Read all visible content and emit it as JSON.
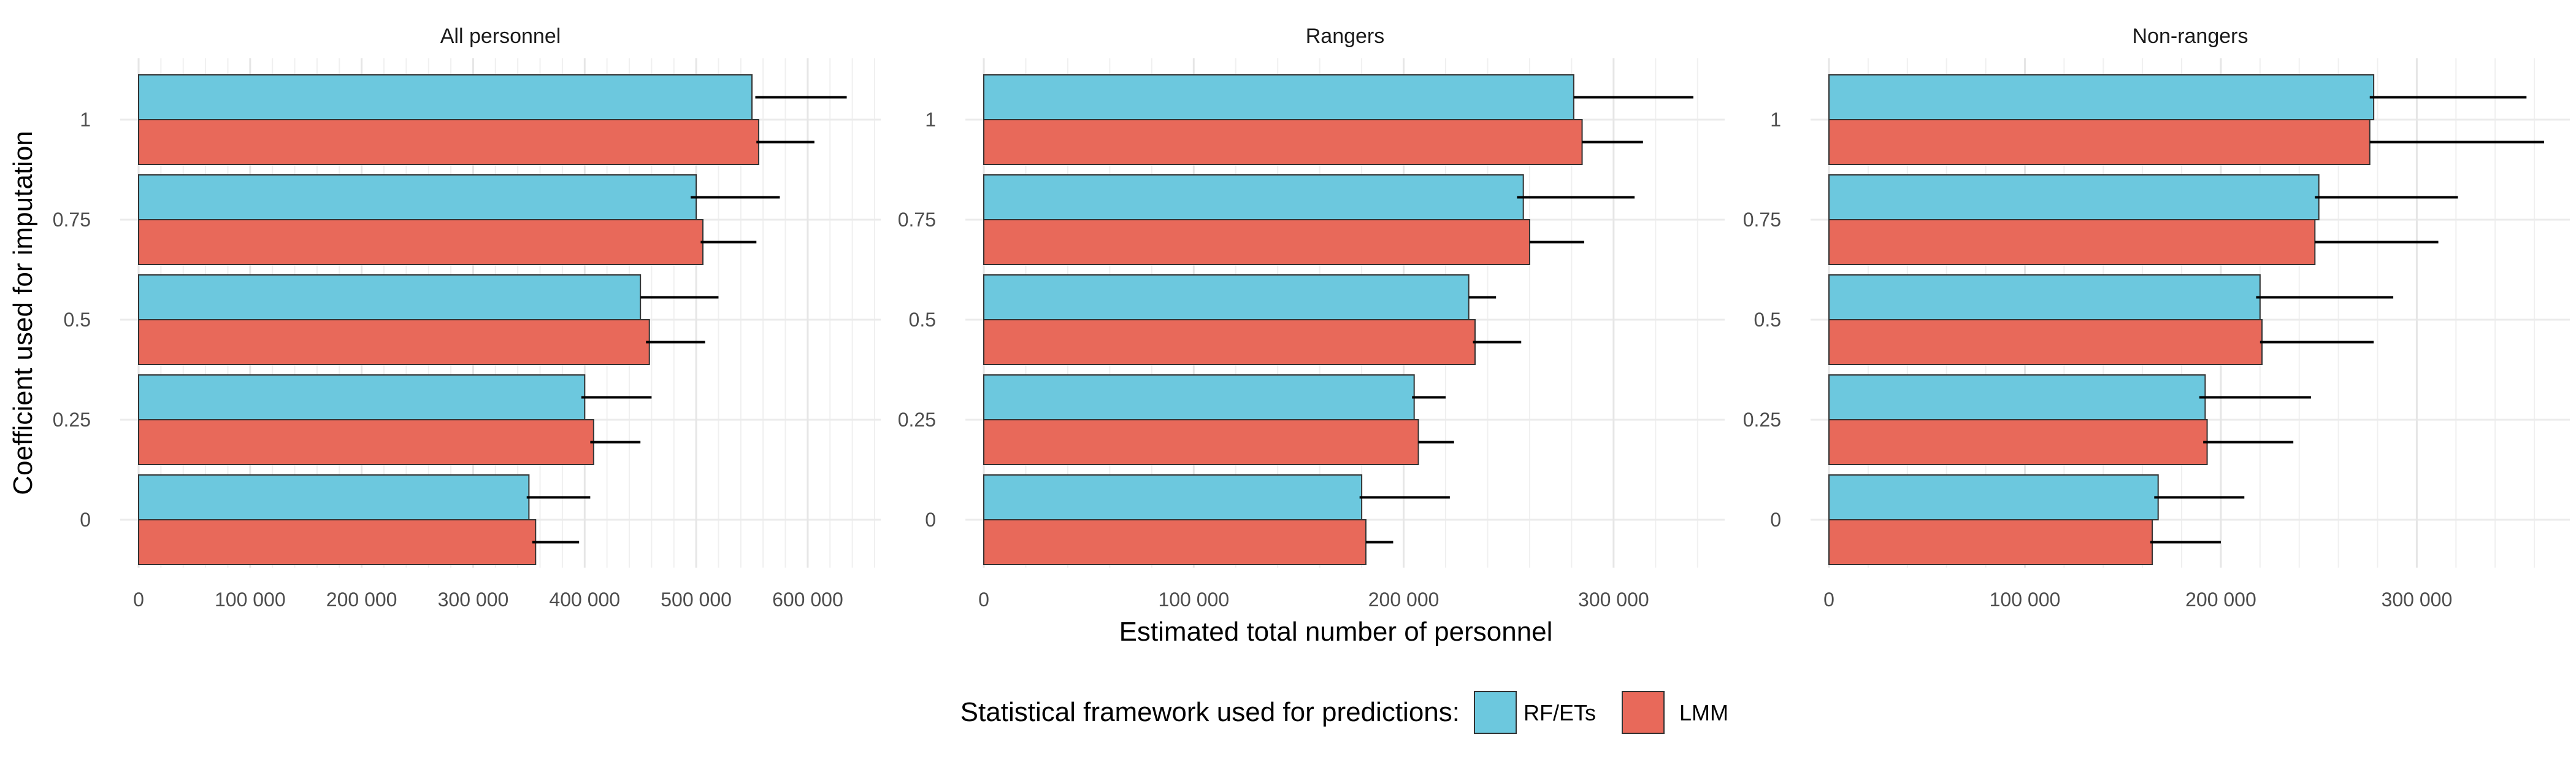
{
  "chart_data": {
    "type": "bar",
    "orientation": "horizontal",
    "xlabel": "Estimated total number of personnel",
    "ylabel": "Coefficient used for imputation",
    "legend": {
      "title": "Statistical framework used for predictions:",
      "placement": "bottom",
      "entries": [
        {
          "name": "RF/ETs",
          "color": "#6CC8DE"
        },
        {
          "name": "LMM",
          "color": "#E8695A"
        }
      ]
    },
    "categories": [
      "1",
      "0.75",
      "0.5",
      "0.25",
      "0"
    ],
    "grid": true,
    "panels": [
      {
        "title": "All personnel",
        "xlim": [
          0,
          660000
        ],
        "xticks": [
          0,
          100000,
          200000,
          300000,
          400000,
          500000,
          600000
        ],
        "xtick_labels": [
          "0",
          "100 000",
          "200 000",
          "300 000",
          "400 000",
          "500 000",
          "600 000"
        ],
        "series": [
          {
            "name": "RF/ETs",
            "values": [
              550000,
              500000,
              450000,
              400000,
              350000
            ],
            "error_upper": [
              635000,
              575000,
              520000,
              460000,
              405000
            ],
            "error_lower": [
              553000,
              495000,
              450000,
              397000,
              348000
            ]
          },
          {
            "name": "LMM",
            "values": [
              556000,
              506000,
              458000,
              408000,
              356000
            ],
            "error_upper": [
              606000,
              554000,
              508000,
              450000,
              395000
            ],
            "error_lower": [
              554000,
              504000,
              455000,
              405000,
              353000
            ]
          }
        ]
      },
      {
        "title": "Rangers",
        "xlim": [
          0,
          350000
        ],
        "xticks": [
          0,
          100000,
          200000,
          300000
        ],
        "xtick_labels": [
          "0",
          "100 000",
          "200 000",
          "300 000"
        ],
        "series": [
          {
            "name": "RF/ETs",
            "values": [
              281000,
              257000,
              231000,
              205000,
              180000
            ],
            "error_upper": [
              338000,
              310000,
              244000,
              220000,
              222000
            ],
            "error_lower": [
              281000,
              254000,
              231000,
              204000,
              179000
            ]
          },
          {
            "name": "LMM",
            "values": [
              285000,
              260000,
              234000,
              207000,
              182000
            ],
            "error_upper": [
              314000,
              286000,
              256000,
              224000,
              195000
            ],
            "error_lower": [
              285000,
              260000,
              233000,
              207000,
              182000
            ]
          }
        ]
      },
      {
        "title": "Non-rangers",
        "xlim": [
          0,
          375000
        ],
        "xticks": [
          0,
          100000,
          200000,
          300000
        ],
        "xtick_labels": [
          "0",
          "100 000",
          "200 000",
          "300 000"
        ],
        "series": [
          {
            "name": "RF/ETs",
            "values": [
              278000,
              250000,
              220000,
              192000,
              168000
            ],
            "error_upper": [
              356000,
              321000,
              288000,
              246000,
              212000
            ],
            "error_lower": [
              276000,
              248000,
              218000,
              189000,
              166000
            ]
          },
          {
            "name": "LMM",
            "values": [
              276000,
              248000,
              221000,
              193000,
              165000
            ],
            "error_upper": [
              365000,
              311000,
              278000,
              237000,
              200000
            ],
            "error_lower": [
              276000,
              248000,
              220000,
              191000,
              164000
            ]
          }
        ]
      }
    ]
  }
}
